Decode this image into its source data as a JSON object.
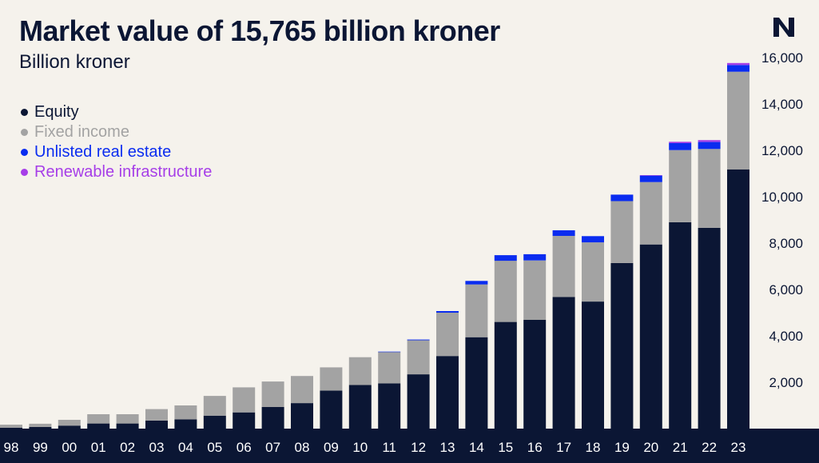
{
  "colors": {
    "background": "#f5f2ec",
    "equity": "#0b1634",
    "fixed_income": "#a3a3a3",
    "real_estate": "#0a2cf0",
    "renewable": "#a63ee8",
    "axis_band": "#0b1634",
    "text": "#0b1634"
  },
  "logo": {
    "icon": "n-logo-icon"
  },
  "chart_data": {
    "type": "bar",
    "stacked": true,
    "title": "Market value of 15,765 billion kroner",
    "subtitle": "Billion kroner",
    "xlabel": "",
    "ylabel": "",
    "ylim": [
      0,
      16000
    ],
    "yticks": [
      "2,000",
      "4,000",
      "6,000",
      "8,000",
      "10,000",
      "12,000",
      "14,000",
      "16,000"
    ],
    "ytick_values": [
      2000,
      4000,
      6000,
      8000,
      10000,
      12000,
      14000,
      16000
    ],
    "y_axis_position": "right",
    "grid": false,
    "legend_position": "top-left",
    "categories": [
      "98",
      "99",
      "00",
      "01",
      "02",
      "03",
      "04",
      "05",
      "06",
      "07",
      "08",
      "09",
      "10",
      "11",
      "12",
      "13",
      "14",
      "15",
      "16",
      "17",
      "18",
      "19",
      "20",
      "21",
      "22",
      "23"
    ],
    "series": [
      {
        "name": "Equity",
        "color": "#0b1634",
        "values": [
          40,
          70,
          130,
          220,
          220,
          350,
          400,
          560,
          700,
          930,
          1100,
          1640,
          1880,
          1950,
          2340,
          3130,
          3940,
          4600,
          4690,
          5680,
          5480,
          7140,
          7940,
          8900,
          8660,
          11180
        ]
      },
      {
        "name": "Fixed income",
        "color": "#a3a3a3",
        "values": [
          130,
          140,
          250,
          400,
          400,
          490,
          600,
          850,
          1080,
          1100,
          1170,
          1000,
          1200,
          1360,
          1470,
          1870,
          2280,
          2640,
          2560,
          2630,
          2550,
          2670,
          2690,
          3110,
          3400,
          4210
        ]
      },
      {
        "name": "Unlisted real estate",
        "color": "#0a2cf0",
        "values": [
          0,
          0,
          0,
          0,
          0,
          0,
          0,
          0,
          0,
          0,
          0,
          0,
          0,
          10,
          30,
          70,
          150,
          240,
          270,
          240,
          270,
          280,
          280,
          300,
          300,
          290
        ]
      },
      {
        "name": "Renewable infrastructure",
        "color": "#a63ee8",
        "values": [
          0,
          0,
          0,
          0,
          0,
          0,
          0,
          0,
          0,
          0,
          0,
          0,
          0,
          0,
          0,
          0,
          0,
          0,
          0,
          0,
          0,
          0,
          20,
          60,
          80,
          85
        ]
      }
    ]
  }
}
